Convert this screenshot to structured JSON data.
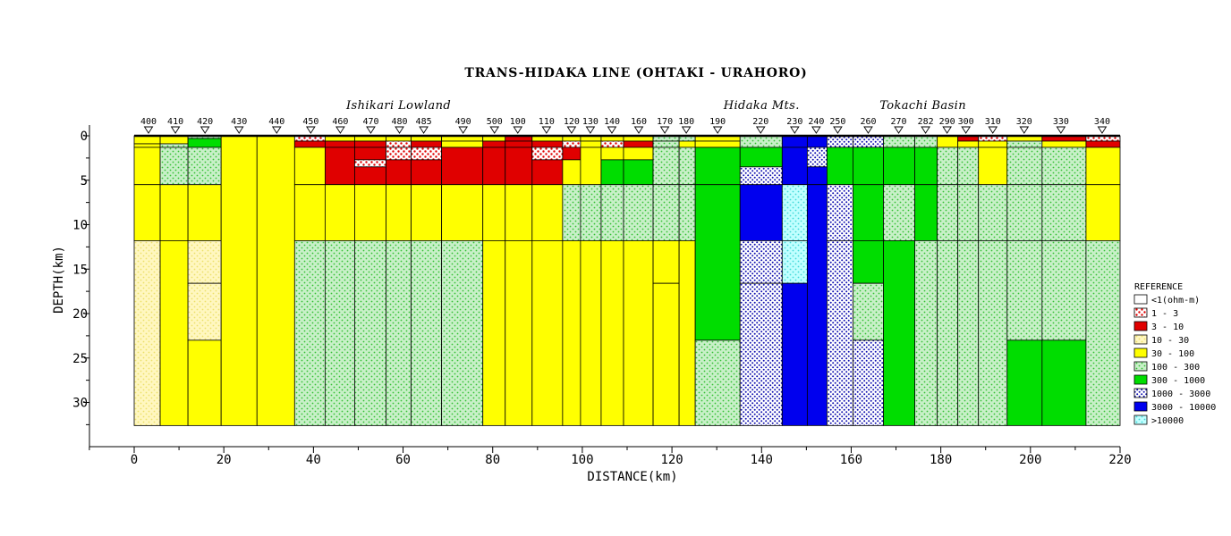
{
  "chart_data": {
    "type": "heatmap",
    "title": "TRANS-HIDAKA LINE (OHTAKI - URAHORO)",
    "xlabel": "DISTANCE(km)",
    "ylabel": "DEPTH(km)",
    "xlim": [
      0,
      220
    ],
    "ylim": [
      0,
      33
    ],
    "y_inverted": true,
    "x_ticks": [
      "0",
      "20",
      "40",
      "60",
      "80",
      "100",
      "120",
      "140",
      "160",
      "180",
      "200",
      "220"
    ],
    "y_ticks": [
      "0",
      "5",
      "10",
      "15",
      "20",
      "25",
      "30"
    ],
    "region_labels": [
      {
        "text": "Ishikari Lowland",
        "x": 59
      },
      {
        "text": "Hidaka Mts.",
        "x": 140
      },
      {
        "text": "Tokachi Basin",
        "x": 176
      }
    ],
    "stations": [
      {
        "label": "400",
        "x": 3.2
      },
      {
        "label": "410",
        "x": 9.2
      },
      {
        "label": "420",
        "x": 15.8
      },
      {
        "label": "430",
        "x": 23.4
      },
      {
        "label": "440",
        "x": 31.8
      },
      {
        "label": "450",
        "x": 39.4
      },
      {
        "label": "460",
        "x": 46.0
      },
      {
        "label": "470",
        "x": 52.8
      },
      {
        "label": "480",
        "x": 59.2
      },
      {
        "label": "485",
        "x": 64.6
      },
      {
        "label": "490",
        "x": 73.4
      },
      {
        "label": "500",
        "x": 80.4
      },
      {
        "label": "100",
        "x": 85.6
      },
      {
        "label": "110",
        "x": 92.0
      },
      {
        "label": "120",
        "x": 97.6
      },
      {
        "label": "130",
        "x": 101.8
      },
      {
        "label": "140",
        "x": 106.6
      },
      {
        "label": "160",
        "x": 112.6
      },
      {
        "label": "170",
        "x": 118.4
      },
      {
        "label": "180",
        "x": 123.2
      },
      {
        "label": "190",
        "x": 130.2
      },
      {
        "label": "220",
        "x": 139.8
      },
      {
        "label": "230",
        "x": 147.4
      },
      {
        "label": "240",
        "x": 152.2
      },
      {
        "label": "250",
        "x": 157.0
      },
      {
        "label": "260",
        "x": 163.8
      },
      {
        "label": "270",
        "x": 170.6
      },
      {
        "label": "282",
        "x": 176.6
      },
      {
        "label": "290",
        "x": 181.4
      },
      {
        "label": "300",
        "x": 185.6
      },
      {
        "label": "310",
        "x": 191.6
      },
      {
        "label": "320",
        "x": 198.6
      },
      {
        "label": "330",
        "x": 206.8
      },
      {
        "label": "340",
        "x": 216.0
      }
    ],
    "legend": {
      "title": "REFERENCE",
      "entries": [
        {
          "label": "<1(ohm-m)",
          "cls": 0
        },
        {
          "label": "1 - 3",
          "cls": 1
        },
        {
          "label": "3 - 10",
          "cls": 2
        },
        {
          "label": "10 - 30",
          "cls": 3
        },
        {
          "label": "30 - 100",
          "cls": 4
        },
        {
          "label": "100 - 300",
          "cls": 5
        },
        {
          "label": "300 - 1000",
          "cls": 6
        },
        {
          "label": "1000 - 3000",
          "cls": 7
        },
        {
          "label": "3000 - 10000",
          "cls": 8
        },
        {
          "label": ">10000",
          "cls": 9
        }
      ]
    },
    "class_colors": {
      "0": {
        "base": "#ffffff",
        "dot": ""
      },
      "1": {
        "base": "#ffffff",
        "dot": "#e00000"
      },
      "2": {
        "base": "#e00000",
        "dot": ""
      },
      "3": {
        "base": "#fff7c0",
        "dot": "#f0e070"
      },
      "4": {
        "base": "#ffff00",
        "dot": ""
      },
      "5": {
        "base": "#c8f0c8",
        "dot": "#30c030"
      },
      "6": {
        "base": "#00dd00",
        "dot": ""
      },
      "7": {
        "base": "#ffffff",
        "dot": "#1010b0"
      },
      "8": {
        "base": "#0000ee",
        "dot": ""
      },
      "9": {
        "base": "#c0ffff",
        "dot": "#40e0e0"
      }
    },
    "x_breaks": [
      0,
      5.8,
      12,
      19.4,
      27.4,
      35.8,
      42.6,
      49.2,
      56.2,
      61.8,
      68.6,
      77.8,
      82.8,
      88.8,
      95.6,
      99.6,
      104.2,
      109.2,
      115.8,
      121.6,
      125.2,
      135.2,
      144.6,
      150.2,
      154.6,
      160.4,
      167.2,
      174.2,
      179.2,
      183.8,
      188.4,
      194.8,
      202.6,
      212.4,
      220.4
    ],
    "y_breaks": [
      0,
      0.3,
      0.6,
      0.9,
      1.3,
      1.9,
      2.7,
      3.5,
      4.3,
      5.5,
      7.0,
      8.5,
      11.8,
      16.6,
      23.0,
      32.6
    ],
    "columns": [
      {
        "c": "0-3:4, 3-4:4, 4-9:4, 9-12:4, 12-15:3"
      },
      {
        "c": "0-3:4, 3-4:5, 4-9:5, 9-12:4, 12-15:4"
      },
      {
        "c": "0-1:5, 1-4:6, 4-9:5, 9-12:4, 12-13:3, 13-14:3, 14-15:4"
      },
      {
        "c": "0-15:4"
      },
      {
        "c": "0-15:4"
      },
      {
        "c": "0-2:1, 2-4:2, 4-9:4, 9-12:4, 12-15:5"
      },
      {
        "c": "0-2:4, 2-4:2, 4-9:2, 9-12:4, 12-15:5"
      },
      {
        "c": "0-2:4, 2-4:2, 4-6:2, 6-7:1, 7-9:2, 9-12:4, 12-15:5"
      },
      {
        "c": "0-2:4, 2-4:1, 4-6:1, 6-9:2, 9-12:4, 12-15:5"
      },
      {
        "c": "0-2:4, 2-4:2, 4-6:1, 6-9:2, 9-12:4, 12-15:5"
      },
      {
        "c": "0-2:4, 2-4:4, 4-9:2, 9-12:4, 12-15:5"
      },
      {
        "c": "0-2:4, 2-4:2, 4-9:2, 9-12:4, 12-15:4"
      },
      {
        "c": "0-2:2, 2-4:2, 4-9:2, 9-12:4, 12-15:4"
      },
      {
        "c": "0-2:4, 2-4:2, 4-6:1, 6-9:2, 9-12:4, 12-15:4"
      },
      {
        "c": "0-2:4, 2-4:1, 4-6:2, 6-9:4, 9-12:5, 12-15:4"
      },
      {
        "c": "0-2:4, 2-4:4, 4-9:4, 9-12:5, 12-15:4"
      },
      {
        "c": "0-2:4, 2-4:1, 4-6:4, 6-9:6, 9-12:5, 12-15:4"
      },
      {
        "c": "0-2:4, 2-4:2, 4-6:4, 6-9:6, 9-12:5, 12-15:4"
      },
      {
        "c": "0-2:5, 2-4:5, 4-9:5, 9-12:5, 12-13:4, 13-15:4"
      },
      {
        "c": "0-2:5, 2-4:4, 4-9:5, 9-12:5, 12-15:4"
      },
      {
        "c": "0-2:4, 2-4:4, 4-9:6, 9-14:6, 14-15:5"
      },
      {
        "c": "0-4:5, 4-7:6, 7-9:7, 9-12:8, 12-13:7, 13-15:7"
      },
      {
        "c": "0-4:8, 4-9:8, 9-12:9, 12-13:9, 13-15:8"
      },
      {
        "c": "0-4:8, 4-7:7, 7-9:8, 9-15:8"
      },
      {
        "c": "0-4:7, 4-9:6, 9-12:7, 12-15:7"
      },
      {
        "c": "0-4:7, 4-9:6, 9-12:6, 12-13:6, 13-14:5, 14-15:7"
      },
      {
        "c": "0-4:5, 4-9:6, 9-12:5, 12-15:6"
      },
      {
        "c": "0-4:5, 4-9:6, 9-12:6, 12-15:5"
      },
      {
        "c": "0-4:4, 4-9:5, 9-12:5, 12-15:5"
      },
      {
        "c": "0-2:2, 2-4:4, 4-9:5, 9-12:5, 12-15:5"
      },
      {
        "c": "0-2:1, 2-4:4, 4-9:4, 9-12:5, 12-15:5"
      },
      {
        "c": "0-2:4, 2-4:5, 4-9:5, 9-12:5, 12-14:5, 14-15:6"
      },
      {
        "c": "0-2:2, 2-4:4, 4-9:5, 9-12:5, 12-14:5, 14-15:6"
      },
      {
        "c": "0-2:1, 2-4:2, 4-9:4, 9-12:4, 12-15:5"
      },
      {
        "c": "0-4:4, 4-12:4, 12-13:4, 13-14:4, 14-15:5"
      }
    ]
  }
}
